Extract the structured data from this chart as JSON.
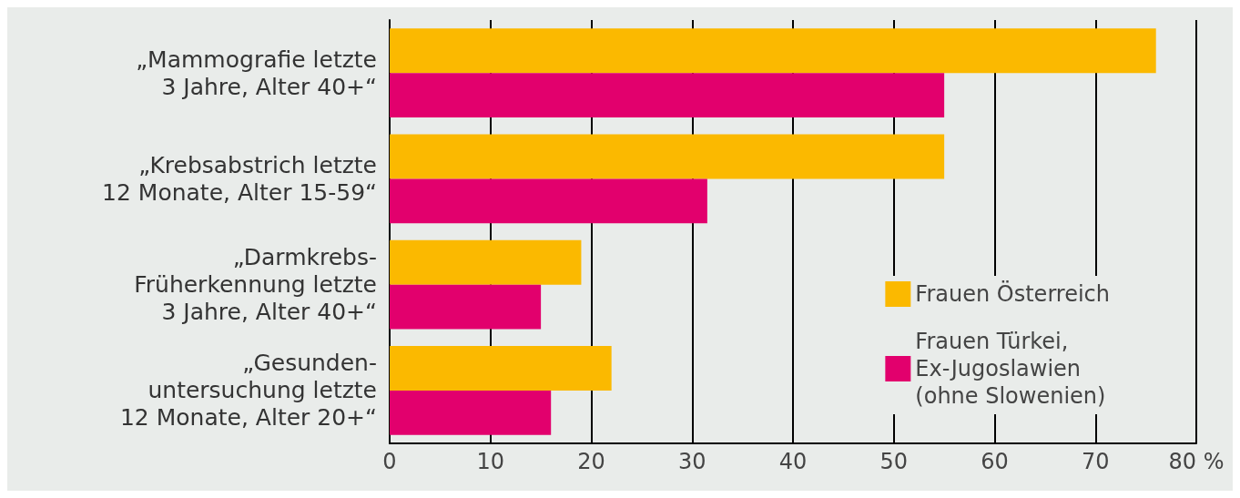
{
  "chart_data": {
    "type": "bar",
    "orientation": "horizontal",
    "categories": [
      "„Mammografie letzte\n3 Jahre, Alter 40+“",
      "„Krebsabstrich letzte\n12 Monate, Alter 15-59“",
      "„Darmkrebs-\nFrüherkennung letzte\n3 Jahre, Alter 40+“",
      "„Gesunden-\nuntersuchung letzte\n12 Monate, Alter 20+“"
    ],
    "series": [
      {
        "name": "Frauen Österreich",
        "color": "#fbb900",
        "values": [
          76,
          55,
          19,
          22
        ]
      },
      {
        "name": "Frauen Türkei,\nEx-Jugoslawien\n(ohne Slowenien)",
        "color": "#e2006d",
        "values": [
          55,
          31.5,
          15,
          16
        ]
      }
    ],
    "xlim": [
      0,
      80
    ],
    "xticks": [
      0,
      10,
      20,
      30,
      40,
      50,
      60,
      70,
      {
        "value": 80,
        "label": "80 %"
      }
    ],
    "grid": "x",
    "legend": "right"
  }
}
